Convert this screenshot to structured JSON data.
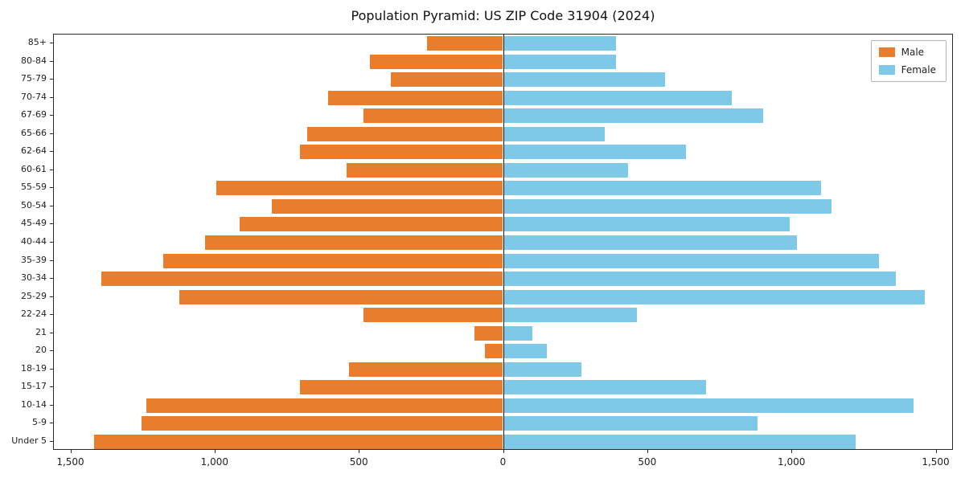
{
  "chart_data": {
    "type": "bar",
    "subtype": "population-pyramid",
    "title": "Population Pyramid: US ZIP Code 31904 (2024)",
    "categories_top_to_bottom": [
      "85+",
      "80-84",
      "75-79",
      "70-74",
      "67-69",
      "65-66",
      "62-64",
      "60-61",
      "55-59",
      "50-54",
      "45-49",
      "40-44",
      "35-39",
      "30-34",
      "25-29",
      "22-24",
      "21",
      "20",
      "18-19",
      "15-17",
      "10-14",
      "5-9",
      "Under 5"
    ],
    "series": [
      {
        "name": "Male",
        "side": "left",
        "color": "#e87d2e",
        "values": [
          260,
          460,
          385,
          605,
          480,
          675,
          700,
          540,
          990,
          800,
          910,
          1030,
          1175,
          1390,
          1120,
          480,
          95,
          60,
          530,
          700,
          1235,
          1250,
          1415
        ]
      },
      {
        "name": "Female",
        "side": "right",
        "color": "#7ec8e8",
        "values": [
          390,
          390,
          560,
          790,
          900,
          350,
          630,
          430,
          1100,
          1135,
          990,
          1015,
          1300,
          1360,
          1460,
          460,
          100,
          150,
          270,
          700,
          1420,
          880,
          1220
        ]
      }
    ],
    "xlim": [
      -1560,
      1560
    ],
    "xticks": [
      -1500,
      -1000,
      -500,
      0,
      500,
      1000,
      1500
    ],
    "xtick_labels": [
      "1,500",
      "1,000",
      "500",
      "0",
      "500",
      "1,000",
      "1,500"
    ],
    "legend_position": "top-right",
    "grid": false,
    "axis_color": "#2a2a2a"
  }
}
